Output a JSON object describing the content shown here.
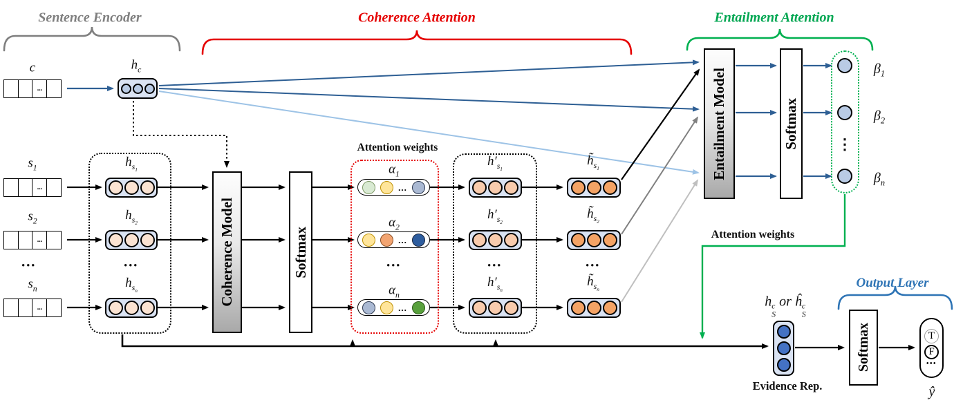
{
  "diagram": {
    "sections": {
      "sentence_encoder": "Sentence Encoder",
      "coherence_attention": "Coherence Attention",
      "entailment_attention": "Entailment Attention",
      "output_layer": "Output Layer"
    },
    "blocks": {
      "coherence_model": "Coherence Model",
      "coherence_softmax": "Softmax",
      "entailment_model": "Entailment Model",
      "entailment_softmax": "Softmax",
      "output_softmax": "Softmax"
    },
    "annotations": {
      "attention_weights_coherence": "Attention weights",
      "attention_weights_entailment": "Attention weights",
      "evidence_rep": "Evidence Rep."
    },
    "outputs": {
      "true_label": "T",
      "false_label": "F",
      "dots": "•••"
    },
    "dots": {
      "cell": "...",
      "row": "•••",
      "inline": "...",
      "vertical": "⋮"
    },
    "colors": {
      "section_gray": "#7f7f7f",
      "section_red": "#e50000",
      "section_green": "#00a651",
      "section_blue": "#2e74b5",
      "arrow_blue": "#2e5f94",
      "arrow_light_blue": "#9dc3e6",
      "arrow_gray": "#808080",
      "arrow_light_gray": "#bfbfbf",
      "green_wire": "#00b050",
      "box_fill": "#dae3f3",
      "hidden_circle": "#b9cbe5",
      "sentence_circle": "#fbe3d2",
      "weighted_circle": "#f8cbad",
      "tilde_circle": "#f4a365",
      "evidence_circle": "#4472c4"
    },
    "alpha_circles": {
      "row1": [
        {
          "fill": "#d9ead3",
          "border": "#7f9a68"
        },
        {
          "fill": "#ffe59a",
          "border": "#bf9000"
        },
        {
          "fill": "#aab9d3",
          "border": "#2f3b52"
        }
      ],
      "row2": [
        {
          "fill": "#ffe59a",
          "border": "#bf9000"
        },
        {
          "fill": "#f2a471",
          "border": "#8a4b20"
        },
        {
          "fill": "#2e5d9e",
          "border": "#16233c"
        }
      ],
      "rown": [
        {
          "fill": "#aab9d3",
          "border": "#2f3b52"
        },
        {
          "fill": "#ffe59a",
          "border": "#bf9000"
        },
        {
          "fill": "#58a03c",
          "border": "#2d5a1b"
        }
      ]
    },
    "math": {
      "c": [
        {
          "t": "c"
        }
      ],
      "s1": [
        {
          "t": "s"
        },
        {
          "sub": [
            {
              "t": "1"
            }
          ]
        }
      ],
      "s2": [
        {
          "t": "s"
        },
        {
          "sub": [
            {
              "t": "2"
            }
          ]
        }
      ],
      "sn": [
        {
          "t": "s"
        },
        {
          "sub": [
            {
              "t": "n"
            }
          ]
        }
      ],
      "hc": [
        {
          "t": "h"
        },
        {
          "sub": [
            {
              "t": "c"
            }
          ]
        }
      ],
      "hs1": [
        {
          "t": "h"
        },
        {
          "sub": [
            {
              "t": "s"
            },
            {
              "sub": [
                {
                  "t": "1"
                }
              ]
            }
          ]
        }
      ],
      "hs2": [
        {
          "t": "h"
        },
        {
          "sub": [
            {
              "t": "s"
            },
            {
              "sub": [
                {
                  "t": "2"
                }
              ]
            }
          ]
        }
      ],
      "hsn": [
        {
          "t": "h"
        },
        {
          "sub": [
            {
              "t": "s"
            },
            {
              "sub": [
                {
                  "t": "n"
                }
              ]
            }
          ]
        }
      ],
      "alpha1": [
        {
          "t": "α"
        },
        {
          "sub": [
            {
              "t": "1"
            }
          ]
        }
      ],
      "alpha2": [
        {
          "t": "α"
        },
        {
          "sub": [
            {
              "t": "2"
            }
          ]
        }
      ],
      "alphan": [
        {
          "t": "α"
        },
        {
          "sub": [
            {
              "t": "n"
            }
          ]
        }
      ],
      "hp1": [
        {
          "t": "h′"
        },
        {
          "sub": [
            {
              "t": "s"
            },
            {
              "sub": [
                {
                  "t": "1"
                }
              ]
            }
          ]
        }
      ],
      "hp2": [
        {
          "t": "h′"
        },
        {
          "sub": [
            {
              "t": "s"
            },
            {
              "sub": [
                {
                  "t": "2"
                }
              ]
            }
          ]
        }
      ],
      "hpn": [
        {
          "t": "h′"
        },
        {
          "sub": [
            {
              "t": "s"
            },
            {
              "sub": [
                {
                  "t": "n"
                }
              ]
            }
          ]
        }
      ],
      "ht1": [
        {
          "t": "h̃"
        },
        {
          "sub": [
            {
              "t": "s"
            },
            {
              "sub": [
                {
                  "t": "1"
                }
              ]
            }
          ]
        }
      ],
      "ht2": [
        {
          "t": "h̃"
        },
        {
          "sub": [
            {
              "t": "s"
            },
            {
              "sub": [
                {
                  "t": "2"
                }
              ]
            }
          ]
        }
      ],
      "htn": [
        {
          "t": "h̃"
        },
        {
          "sub": [
            {
              "t": "s"
            },
            {
              "sub": [
                {
                  "t": "n"
                }
              ]
            }
          ]
        }
      ],
      "beta1": [
        {
          "t": "β"
        },
        {
          "sub": [
            {
              "t": "1"
            }
          ]
        }
      ],
      "beta2": [
        {
          "t": "β"
        },
        {
          "sub": [
            {
              "t": "2"
            }
          ]
        }
      ],
      "betan": [
        {
          "t": "β"
        },
        {
          "sub": [
            {
              "t": "n"
            }
          ]
        }
      ],
      "evidence": [
        {
          "t": "h"
        },
        {
          "ss": {
            "sup": "c",
            "sub": "S"
          }
        },
        {
          "t": " or "
        },
        {
          "t": "ĥ"
        },
        {
          "ss": {
            "sup": "c",
            "sub": "S"
          }
        }
      ],
      "yhat": [
        {
          "t": "ŷ"
        }
      ]
    }
  }
}
